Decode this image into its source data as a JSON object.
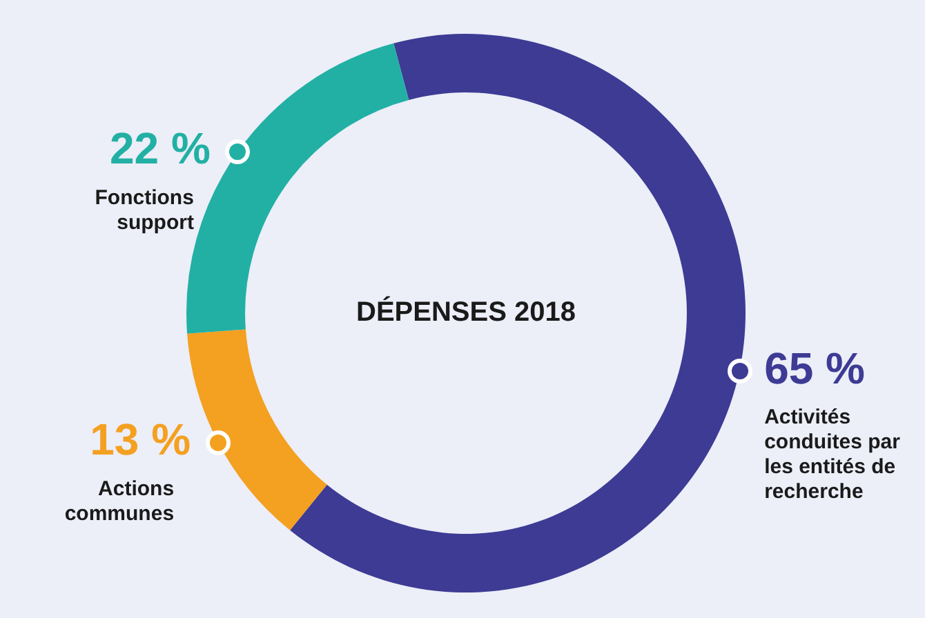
{
  "chart_data": {
    "type": "donut",
    "title": "DÉPENSES 2018",
    "categories": [
      "Activités conduites par les entités de recherche",
      "Actions communes",
      "Fonctions support"
    ],
    "values": [
      65,
      13,
      22
    ],
    "value_labels": [
      "65 %",
      "13 %",
      "22 %"
    ],
    "colors": [
      "#3d3b94",
      "#f4a020",
      "#22b0a4"
    ]
  }
}
